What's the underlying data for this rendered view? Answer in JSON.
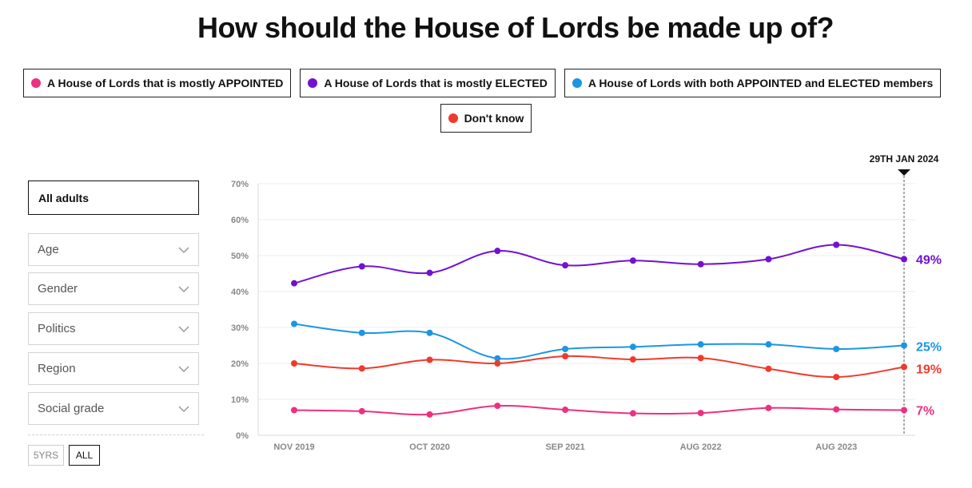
{
  "title": "How should the House of Lords be made up of?",
  "legend": [
    {
      "label": "A House of Lords that is mostly APPOINTED",
      "color": "#ef2f7f"
    },
    {
      "label": "A House of Lords that is mostly ELECTED",
      "color": "#7211d1"
    },
    {
      "label": "A House of Lords with both APPOINTED and ELECTED members",
      "color": "#1b96e4"
    },
    {
      "label": "Don't know",
      "color": "#f03a2c"
    }
  ],
  "filters": {
    "selected": "All adults",
    "dropdowns": [
      "Age",
      "Gender",
      "Politics",
      "Region",
      "Social grade"
    ],
    "chevron_icon": "chevron-down-icon"
  },
  "range": {
    "five_years": "5YRS",
    "all": "ALL"
  },
  "marker_label": "29TH JAN 2024",
  "chart_data": {
    "type": "line",
    "x": [
      "Nov 2019",
      "May 2020",
      "Oct 2020",
      "Apr 2021",
      "Sep 2021",
      "Feb 2022",
      "Aug 2022",
      "Feb 2023",
      "Aug 2023",
      "Jan 2024"
    ],
    "xticks": [
      "NOV 2019",
      "OCT 2020",
      "SEP 2021",
      "AUG 2022",
      "AUG 2023"
    ],
    "yticks": [
      "0%",
      "10%",
      "20%",
      "30%",
      "40%",
      "50%",
      "60%",
      "70%"
    ],
    "ylim": [
      0,
      70
    ],
    "series": [
      {
        "name": "A House of Lords that is mostly APPOINTED",
        "color": "#ef2f7f",
        "values": [
          7,
          6.7,
          5.8,
          8.2,
          7.1,
          6.1,
          6.2,
          7.6,
          7.2,
          7
        ],
        "end_label": "7%"
      },
      {
        "name": "A House of Lords that is mostly ELECTED",
        "color": "#7211d1",
        "values": [
          42.3,
          47,
          45.2,
          51.3,
          47.3,
          48.6,
          47.6,
          49,
          53,
          49
        ],
        "end_label": "49%"
      },
      {
        "name": "A House of Lords with both APPOINTED and ELECTED members",
        "color": "#1b96e4",
        "values": [
          31,
          28.5,
          28.5,
          21.4,
          24,
          24.6,
          25.3,
          25.3,
          24,
          25
        ],
        "end_label": "25%"
      },
      {
        "name": "Don't know",
        "color": "#f03a2c",
        "values": [
          20,
          18.6,
          21,
          20,
          22,
          21.1,
          21.5,
          18.5,
          16.2,
          19
        ],
        "end_label": "19%"
      }
    ]
  }
}
